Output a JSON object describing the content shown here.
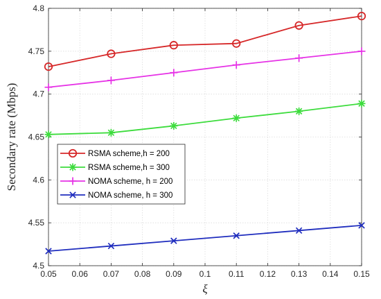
{
  "chart_data": {
    "type": "line",
    "title": "",
    "xlabel": "ξ",
    "ylabel": "Secondary rate (Mbps)",
    "x": [
      0.05,
      0.07,
      0.09,
      0.11,
      0.13,
      0.15
    ],
    "xlim": [
      0.05,
      0.15
    ],
    "ylim": [
      4.5,
      4.8
    ],
    "xticks": [
      0.05,
      0.06,
      0.07,
      0.08,
      0.09,
      0.1,
      0.11,
      0.12,
      0.13,
      0.14,
      0.15
    ],
    "xtick_labels": [
      "0.05",
      "0.06",
      "0.07",
      "0.08",
      "0.09",
      "0.1",
      "0.11",
      "0.12",
      "0.13",
      "0.14",
      "0.15"
    ],
    "yticks": [
      4.5,
      4.55,
      4.6,
      4.65,
      4.7,
      4.75,
      4.8
    ],
    "ytick_labels": [
      "4.5",
      "4.55",
      "4.6",
      "4.65",
      "4.7",
      "4.75",
      "4.8"
    ],
    "grid": true,
    "legend_position": "left",
    "series": [
      {
        "name": "RSMA scheme,h = 200",
        "color": "#d62728",
        "marker": "circle",
        "values": [
          4.732,
          4.747,
          4.757,
          4.759,
          4.78,
          4.791
        ]
      },
      {
        "name": "RSMA scheme,h = 300",
        "color": "#3cdc3c",
        "marker": "asterisk",
        "values": [
          4.653,
          4.655,
          4.663,
          4.672,
          4.68,
          4.689
        ]
      },
      {
        "name": "NOMA scheme, h = 200",
        "color": "#e632e6",
        "marker": "plus",
        "values": [
          4.708,
          4.716,
          4.725,
          4.734,
          4.742,
          4.75
        ]
      },
      {
        "name": "NOMA scheme, h = 300",
        "color": "#1f2dbe",
        "marker": "cross",
        "values": [
          4.517,
          4.523,
          4.529,
          4.535,
          4.541,
          4.547
        ]
      }
    ]
  }
}
